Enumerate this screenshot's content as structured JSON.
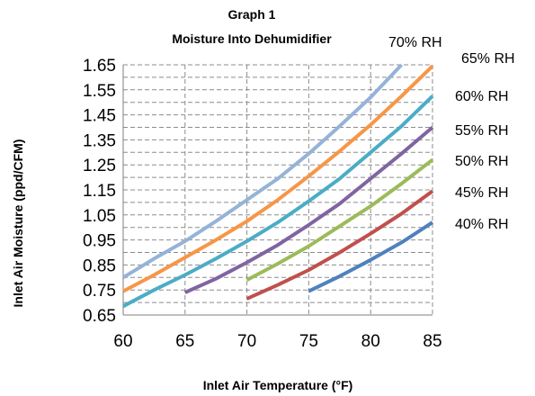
{
  "chart_data": {
    "type": "line",
    "title": "Graph 1",
    "subtitle": "Moisture Into Dehumidifier",
    "xlabel": "Inlet Air Temperature (°F)",
    "ylabel": "Inlet Air Moisture (ppd/CFM)",
    "xlim": [
      60,
      85
    ],
    "ylim": [
      0.65,
      1.65
    ],
    "x_ticks": [
      "60",
      "65",
      "70",
      "75",
      "80",
      "85"
    ],
    "y_ticks": [
      "0.65",
      "0.75",
      "0.85",
      "0.95",
      "1.05",
      "1.15",
      "1.25",
      "1.35",
      "1.45",
      "1.55",
      "1.65"
    ],
    "y_minor_grid_step": 0.05,
    "grid": true,
    "series": [
      {
        "name": "40% RH",
        "color": "#4f81bd",
        "x": [
          75,
          77.5,
          80,
          82.5,
          85
        ],
        "y": [
          0.745,
          0.805,
          0.87,
          0.94,
          1.02
        ]
      },
      {
        "name": "45% RH",
        "color": "#c0504d",
        "x": [
          70,
          72.5,
          75,
          77.5,
          80,
          82.5,
          85
        ],
        "y": [
          0.715,
          0.77,
          0.83,
          0.9,
          0.975,
          1.055,
          1.145
        ]
      },
      {
        "name": "50% RH",
        "color": "#9bbb59",
        "x": [
          70,
          72.5,
          75,
          77.5,
          80,
          82.5,
          85
        ],
        "y": [
          0.79,
          0.855,
          0.925,
          1.005,
          1.085,
          1.175,
          1.27
        ]
      },
      {
        "name": "55% RH",
        "color": "#8064a2",
        "x": [
          65,
          67.5,
          70,
          72.5,
          75,
          77.5,
          80,
          82.5,
          85
        ],
        "y": [
          0.74,
          0.795,
          0.86,
          0.93,
          1.01,
          1.095,
          1.195,
          1.295,
          1.4
        ]
      },
      {
        "name": "60% RH",
        "color": "#4bacc6",
        "x": [
          60,
          62.5,
          65,
          67.5,
          70,
          72.5,
          75,
          77.5,
          80,
          82.5,
          85
        ],
        "y": [
          0.685,
          0.75,
          0.81,
          0.875,
          0.945,
          1.02,
          1.105,
          1.195,
          1.3,
          1.405,
          1.525
        ]
      },
      {
        "name": "65% RH",
        "color": "#f79646",
        "x": [
          60,
          62.5,
          65,
          67.5,
          70,
          72.5,
          75,
          77.5,
          80,
          82.5,
          85
        ],
        "y": [
          0.745,
          0.81,
          0.88,
          0.95,
          1.025,
          1.11,
          1.205,
          1.305,
          1.41,
          1.525,
          1.645
        ]
      },
      {
        "name": "70% RH",
        "color": "#95b3d7",
        "x": [
          60,
          62.5,
          65,
          67.5,
          70,
          72.5,
          75,
          77.5,
          80,
          82.5
        ],
        "y": [
          0.8,
          0.875,
          0.945,
          1.025,
          1.11,
          1.195,
          1.295,
          1.405,
          1.52,
          1.65
        ]
      }
    ]
  }
}
